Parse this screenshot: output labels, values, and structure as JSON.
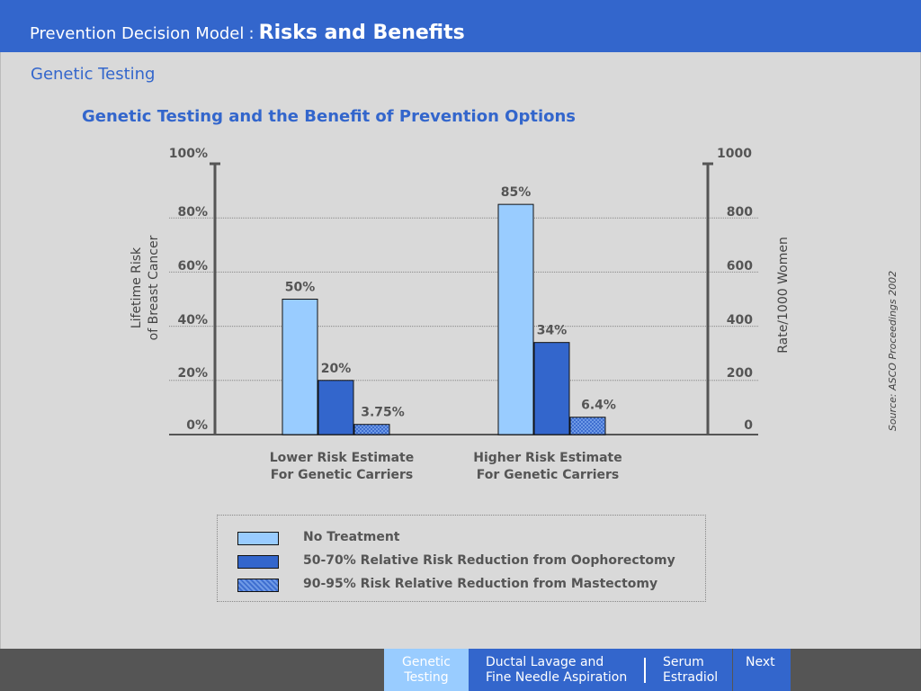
{
  "header": {
    "app_title": "Prevention Decision Model",
    "separator": ":",
    "page_title": "Risks and Benefits"
  },
  "section_title": "Genetic Testing",
  "chart_data": {
    "type": "bar",
    "title": "Genetic Testing and the Benefit of Prevention Options",
    "ylabel_left_line1": "Lifetime Risk",
    "ylabel_left_line2": "of Breast Cancer",
    "ylabel_right": "Rate/1000 Women",
    "ylim": [
      0,
      100
    ],
    "ylim_right": [
      0,
      1000
    ],
    "yticks_left": [
      "0%",
      "20%",
      "40%",
      "60%",
      "80%",
      "100%"
    ],
    "yticks_left_values": [
      0,
      20,
      40,
      60,
      80,
      100
    ],
    "yticks_right": [
      "0",
      "200",
      "400",
      "600",
      "800",
      "1000"
    ],
    "categories": [
      [
        "Lower Risk Estimate",
        "For Genetic Carriers"
      ],
      [
        "Higher Risk Estimate",
        "For Genetic Carriers"
      ]
    ],
    "series": [
      {
        "name": "No Treatment",
        "values": [
          50,
          85
        ],
        "labels": [
          "50%",
          "85%"
        ],
        "color": "#99ccff",
        "pattern": false
      },
      {
        "name": "50-70% Relative Risk Reduction from Oophorectomy",
        "values": [
          20,
          34
        ],
        "labels": [
          "20%",
          "34%"
        ],
        "color": "#3366cc",
        "pattern": false
      },
      {
        "name": "90-95% Risk Relative Reduction from Mastectomy",
        "values": [
          3.75,
          6.4
        ],
        "labels": [
          "3.75%",
          "6.4%"
        ],
        "color": "#5588dd",
        "pattern": true
      }
    ],
    "grid": true,
    "legend_position": "bottom",
    "source": "Source: ASCO Proceedings 2002"
  },
  "footer": {
    "nav": [
      {
        "line1": "Genetic",
        "line2": "Testing"
      },
      {
        "line1": "Ductal Lavage and",
        "line2": "Fine Needle Aspiration"
      },
      {
        "line1": "Serum",
        "line2": "Estradiol"
      },
      {
        "line1": "Next",
        "line2": ""
      }
    ]
  }
}
